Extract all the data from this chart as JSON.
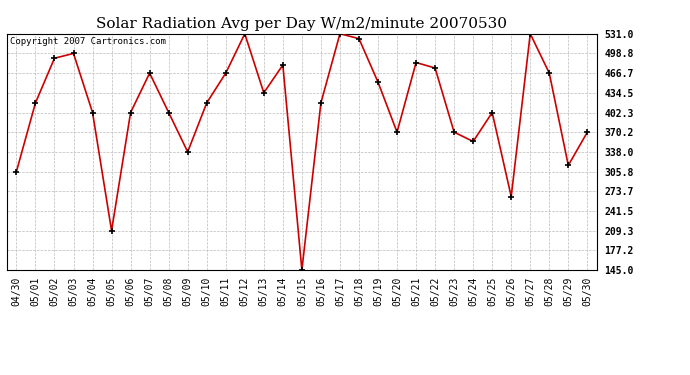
{
  "title": "Solar Radiation Avg per Day W/m2/minute 20070530",
  "copyright": "Copyright 2007 Cartronics.com",
  "dates": [
    "04/30",
    "05/01",
    "05/02",
    "05/03",
    "05/04",
    "05/05",
    "05/06",
    "05/07",
    "05/08",
    "05/09",
    "05/10",
    "05/11",
    "05/12",
    "05/13",
    "05/14",
    "05/15",
    "05/16",
    "05/17",
    "05/18",
    "05/19",
    "05/20",
    "05/21",
    "05/22",
    "05/23",
    "05/24",
    "05/25",
    "05/26",
    "05/27",
    "05/28",
    "05/29",
    "05/30"
  ],
  "values": [
    305.8,
    418.0,
    491.0,
    498.8,
    402.3,
    209.3,
    402.3,
    466.7,
    402.3,
    338.0,
    418.0,
    466.7,
    531.0,
    434.5,
    480.0,
    145.0,
    418.0,
    531.0,
    523.0,
    452.0,
    370.2,
    484.0,
    475.0,
    370.2,
    355.0,
    402.3,
    265.0,
    531.0,
    466.7,
    316.0,
    370.2
  ],
  "line_color": "#cc0000",
  "marker_color": "#000000",
  "bg_color": "#ffffff",
  "plot_bg_color": "#ffffff",
  "grid_color": "#bbbbbb",
  "ylim": [
    145.0,
    531.0
  ],
  "yticks": [
    145.0,
    177.2,
    209.3,
    241.5,
    273.7,
    305.8,
    338.0,
    370.2,
    402.3,
    434.5,
    466.7,
    498.8,
    531.0
  ],
  "title_fontsize": 11,
  "copyright_fontsize": 6.5,
  "tick_fontsize": 7,
  "figwidth": 6.9,
  "figheight": 3.75,
  "dpi": 100
}
